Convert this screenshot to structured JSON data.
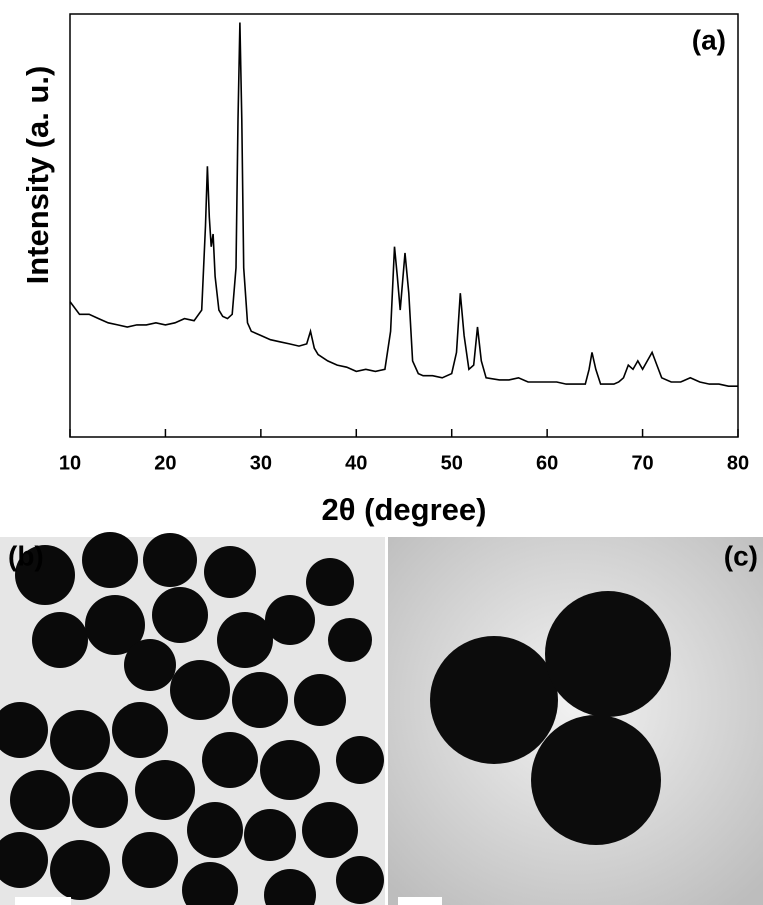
{
  "chart_data": {
    "type": "line",
    "annotation": "(a)",
    "xlabel": "2θ (degree)",
    "ylabel": "Intensity (a. u.)",
    "x": [
      10,
      11,
      12,
      13,
      14,
      15,
      16,
      17,
      18,
      19,
      20,
      21,
      22,
      23,
      23.8,
      24.2,
      24.4,
      24.6,
      24.8,
      25,
      25.2,
      25.6,
      26,
      26.5,
      27,
      27.4,
      27.6,
      27.8,
      28,
      28.2,
      28.6,
      29,
      30,
      31,
      32,
      33,
      34,
      34.8,
      35.2,
      35.6,
      36,
      37,
      38,
      39,
      40,
      41,
      42,
      43,
      43.6,
      44,
      44.3,
      44.6,
      45.1,
      45.5,
      45.9,
      46.5,
      47,
      48,
      49,
      50,
      50.5,
      50.9,
      51.3,
      51.8,
      52.3,
      52.7,
      53.1,
      53.6,
      55,
      56,
      57,
      58,
      59,
      60,
      61,
      62,
      63,
      64,
      64.4,
      64.7,
      65.1,
      65.6,
      66,
      67,
      67.5,
      68,
      68.5,
      69,
      69.5,
      70,
      70.5,
      71,
      71.5,
      72,
      73,
      74,
      75,
      76,
      77,
      78,
      79,
      80
    ],
    "values": [
      32,
      29,
      29,
      28,
      27,
      26.5,
      26,
      26.5,
      26.5,
      27,
      26.5,
      27,
      28,
      27.5,
      30,
      50,
      64,
      52,
      45,
      48,
      38,
      30,
      28.5,
      28,
      29,
      40,
      75,
      98,
      75,
      40,
      27,
      25,
      24,
      23,
      22.5,
      22,
      21.5,
      22,
      25,
      21,
      19.5,
      18,
      17,
      16.5,
      15.5,
      16,
      15.5,
      16,
      25,
      45,
      38,
      30,
      43.5,
      34,
      18,
      15,
      14.5,
      14.5,
      14,
      15,
      20,
      34,
      24,
      16,
      17,
      26,
      18,
      14,
      13.5,
      13.5,
      14,
      13,
      13,
      13,
      13,
      12.5,
      12.5,
      12.5,
      16,
      20,
      16,
      12.5,
      12.5,
      12.5,
      13,
      14,
      17,
      16,
      18,
      16,
      18,
      20,
      17,
      14,
      13,
      13,
      14,
      13,
      12.5,
      12.5,
      12,
      12
    ],
    "color": "#000000",
    "xlim": [
      10,
      80
    ],
    "xticks": [
      10,
      20,
      30,
      40,
      50,
      60,
      70,
      80
    ],
    "ylim": [
      0,
      100
    ]
  },
  "panels": [
    {
      "label": "(b)"
    },
    {
      "label": "(c)"
    }
  ]
}
